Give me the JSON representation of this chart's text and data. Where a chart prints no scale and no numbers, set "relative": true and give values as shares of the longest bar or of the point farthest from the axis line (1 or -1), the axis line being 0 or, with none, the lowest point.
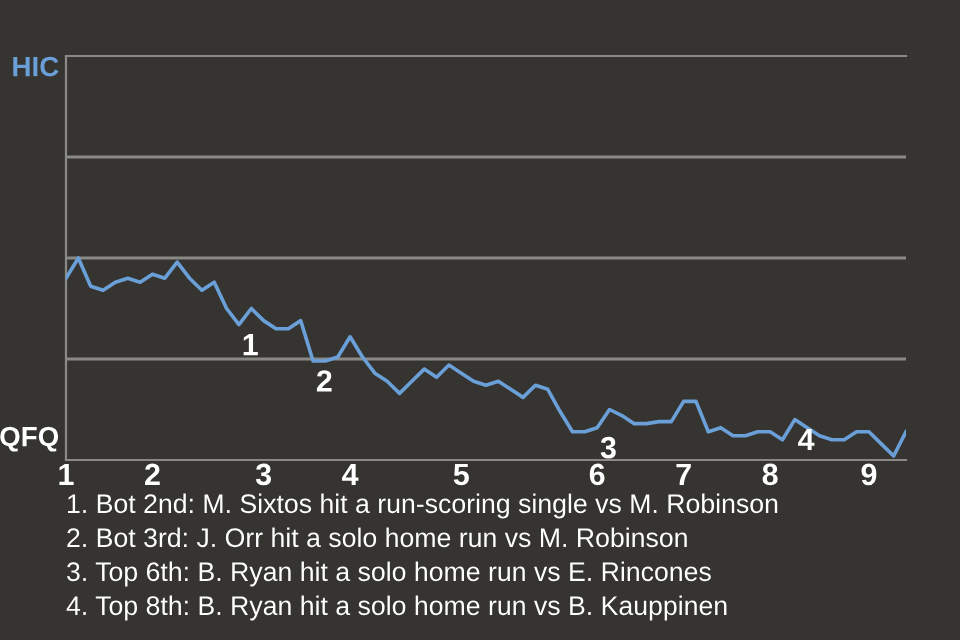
{
  "chart_data": {
    "type": "line",
    "relative": true,
    "categories": [
      "1",
      null,
      null,
      null,
      null,
      null,
      null,
      "2",
      null,
      null,
      null,
      null,
      null,
      null,
      null,
      null,
      "3",
      null,
      null,
      null,
      null,
      null,
      null,
      "4",
      null,
      null,
      null,
      null,
      null,
      null,
      null,
      null,
      "5",
      null,
      null,
      null,
      null,
      null,
      null,
      null,
      null,
      null,
      null,
      "6",
      null,
      null,
      null,
      null,
      null,
      null,
      "7",
      null,
      null,
      null,
      null,
      null,
      null,
      "8",
      null,
      null,
      null,
      null,
      null,
      null,
      null,
      "9",
      null,
      null,
      null
    ],
    "series": [
      {
        "color": "#6a9fd8",
        "values": [
          0.9,
          1,
          0.86,
          0.84,
          0.88,
          0.9,
          0.88,
          0.92,
          0.9,
          0.98,
          0.9,
          0.84,
          0.88,
          0.75,
          0.67,
          0.75,
          0.69,
          0.65,
          0.65,
          0.69,
          0.49,
          0.49,
          0.51,
          0.61,
          0.51,
          0.43,
          0.39,
          0.33,
          0.39,
          0.45,
          0.41,
          0.47,
          0.43,
          0.39,
          0.37,
          0.39,
          0.35,
          0.31,
          0.37,
          0.35,
          0.24,
          0.14,
          0.14,
          0.16,
          0.25,
          0.22,
          0.18,
          0.18,
          0.19,
          0.19,
          0.29,
          0.29,
          0.14,
          0.16,
          0.12,
          0.12,
          0.14,
          0.14,
          0.1,
          0.2,
          0.16,
          0.12,
          0.1,
          0.1,
          0.14,
          0.14,
          0.08,
          0.02,
          0.14
        ]
      }
    ],
    "ref_lines": [
      {
        "axis": "y",
        "value": 0.5,
        "color": "#8a8986"
      },
      {
        "axis": "y",
        "value": 1,
        "color": "#8a8986"
      },
      {
        "axis": "y",
        "value": 1.5,
        "color": "#8a8986"
      }
    ],
    "annotations": [
      "HIC",
      "QFQ",
      {
        "text": "1",
        "y": 0.67
      },
      {
        "text": "2",
        "y": 0.49
      },
      {
        "text": "3",
        "y": 0.16
      },
      {
        "text": "4",
        "y": 0.2
      },
      "1. Bot 2nd: M. Sixtos hit a run-scoring single vs M. Robinson",
      "2. Bot 3rd: J. Orr hit a solo home run vs M. Robinson",
      "3. Top 6th: B. Ryan hit a solo home run vs E. Rincones",
      "4. Top 8th: B. Ryan hit a solo home run vs B. Kauppinen"
    ]
  }
}
